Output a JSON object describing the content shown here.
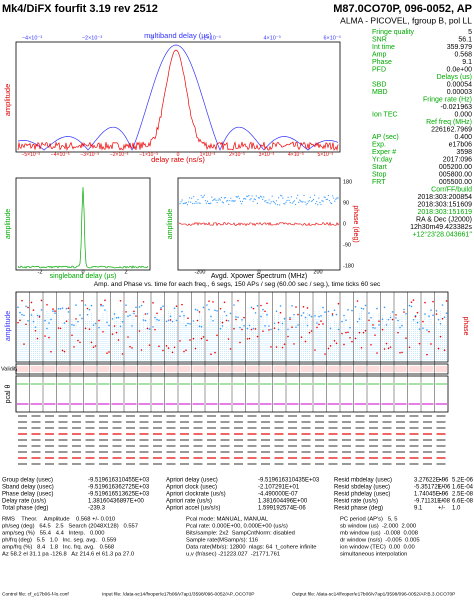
{
  "header": {
    "title": "Mk4/DiFX fourfit 3.19 rev 2512",
    "source": "M87.0CO70P, 096-0052, AP",
    "baseline": "ALMA - PICOVEL, fgroup B, pol LL"
  },
  "top_plot": {
    "x_top_label": "multiband delay (µs)",
    "x_label": "delay rate (ns/s)",
    "y_label": "amplitude",
    "top_ticks": [
      "−4×10⁻³",
      "−2×10⁻³",
      "0",
      "2×10⁻³",
      "4×10⁻³",
      "6×10⁻³"
    ],
    "bottom_ticks": [
      "−5×10⁻³",
      "−4×10⁻³",
      "−3×10⁻³",
      "−2×10⁻³",
      "−1×10⁻³",
      "0",
      "1×10⁻³",
      "2×10⁻³",
      "3×10⁻³",
      "4×10⁻³",
      "5×10⁻³"
    ]
  },
  "info": [
    [
      "Fringe quality",
      "5"
    ],
    [
      "SNR",
      "56.1"
    ],
    [
      "Int time",
      "359.979"
    ],
    [
      "Amp",
      "0.568"
    ],
    [
      "Phase",
      "9.1"
    ],
    [
      "PFD",
      "0.0e+00"
    ],
    [
      "Delays (us)"
    ],
    [
      "SBD",
      "0.00054"
    ],
    [
      "MBD",
      "0.00003"
    ],
    [
      "Fringe rate (Hz)"
    ],
    [
      "-0.021963"
    ],
    [
      "Ion TEC",
      "0.000"
    ],
    [
      "Ref freq (MHz)"
    ],
    [
      "226162.7969"
    ],
    [
      "AP (sec)",
      "0.400"
    ],
    [
      "Exp.",
      "e17b06"
    ],
    [
      "Exper #",
      "3598"
    ],
    [
      "Yr:day",
      "2017:096"
    ],
    [
      "Start",
      "005200.00"
    ],
    [
      "Stop",
      "005800.00"
    ],
    [
      "FRT",
      "005500.00"
    ],
    [
      "Corr/FF/build"
    ],
    [
      "2018:303:200854"
    ],
    [
      "2018:303:151609"
    ],
    [
      "2018:303:151619"
    ],
    [
      "RA & Dec (J2000)"
    ],
    [
      "12h30m49.423382s"
    ],
    [
      "+12°23'28.043661''"
    ]
  ],
  "sbd_plot": {
    "y_label": "amplitude",
    "x_label": "singleband delay (µs)",
    "ticks": [
      "-2",
      "0",
      "2"
    ]
  },
  "xpower_plot": {
    "x_label": "Avgd. Xpower Spectrum (MHz)",
    "y_left_label": "amplitude",
    "y_label": "phase (deg)",
    "x_ticks": [
      "-200",
      "0",
      "200"
    ],
    "y_ticks": [
      "180",
      "90",
      "0",
      "-90",
      "-180"
    ]
  },
  "channel_plot": {
    "title": "Amp. and Phase vs. time for each freq., 6 segs, 150 APs / seg (60.00 sec / seg.), time ticks 60 sec",
    "amp_label": "amplitude",
    "phase_label": "phase",
    "validity_label": "Validity",
    "pcal_label": "pcal θ"
  },
  "residuals": [
    [
      "Group delay (usec)",
      "-9.519616310455E+03",
      "Apriori delay (usec)",
      "-9.519616310435E+03",
      "Resid mbdelay (usec)",
      "3.27622E-06",
      "+/-",
      "5.2E-06"
    ],
    [
      "Sband delay (usec)",
      "-9.519616362725E+03",
      "Apriori clock (usec)",
      "-2.107291E+01",
      "Resid sbdelay (usec)",
      "-5.35172E-06",
      "+/-",
      "1.6E-04"
    ],
    [
      "Phase delay (usec)",
      "-9.519616513625E+03",
      "Apriori clockrate (us/s)",
      "-4.490000E-07",
      "Resid phdelay (usec)",
      "1.74045E-06",
      "+/-",
      "2.5E-08"
    ],
    [
      "Delay rate (us/s)",
      "1.38160436897E+00",
      "Apriori rate (us/s)",
      "1.381604496E+00",
      "Resid rate (us/s)",
      "-9.71131E-08",
      "+/-",
      "6.6E-08"
    ],
    [
      "Total phase (deg)",
      "-239.3",
      "Apriori accel (us/s/s)",
      "1.599192574E-06",
      "Resid phase (deg)",
      "9.1",
      "+/-",
      "1.0"
    ]
  ],
  "stats": [
    [
      "RMS    Theor.    Amplitude    0.568 +/- 0.010",
      "Pcal mode: MANUAL, MANUAL",
      "PC period (AP's)   5, 5"
    ],
    [
      "ph/seg (deg)   64.5   2.5   Search (2048X128)   0.557",
      "Pcal rate: 0.000E+00, 0.000E+00 (us/s)",
      "sb window (us)  -2.000  2.000"
    ],
    [
      "amp/seg (%)   55.4   4.4   Interp.   0.000",
      "Bits/sample: 2x2  SampCntNorm: disabled",
      "mb window (us)  -0.008  0.008"
    ],
    [
      "ph/frq (deg)   5.5   1.0   Inc. seg. avg.   0.559",
      "Sample rate(MSamp/s): 116",
      "dr window (ns/s)  -0.005  0.005"
    ],
    [
      "amp/frq (%)   8.4   1.8   Inc. frq. avg.   0.568",
      "Data rate(Mb/s): 12800  nlags: 64  t_cohere infinite",
      "ion window (TEC)  0.00  0.00"
    ],
    [
      "Az 58.2 el 31.1 pa -126.8   Az 214.6 el 61.3 pa 27.0",
      "u,v (fr/asec) -21223.027  -21771.761",
      "simultaneous interpolation"
    ]
  ],
  "files": [
    "Control file: cf_e17b06-f-lo.conf",
    "Input file: /data-sc14/fxoper/e17b06/v7ap1/3598/096-0052/AP..OCO70P",
    "Output file: /data-sc14/fxoper/e17b06/v7ap1/3598/096-0052/AP.B.3.OCO70P"
  ]
}
